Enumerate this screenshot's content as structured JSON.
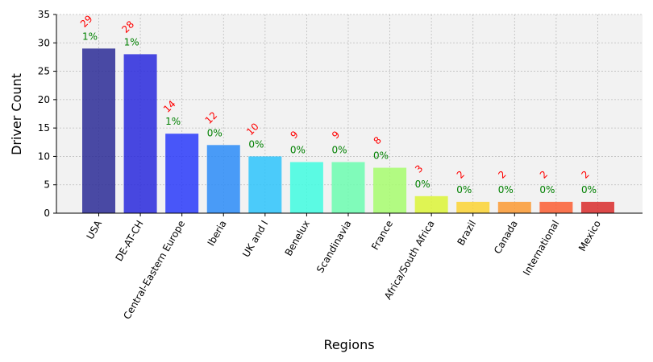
{
  "chart_data": {
    "type": "bar",
    "categories": [
      "USA",
      "DE-AT-CH",
      "Central-Eastern Europe",
      "Iberia",
      "UK and I",
      "Benelux",
      "Scandinavia",
      "France",
      "Africa/South Africa",
      "Brazil",
      "Canada",
      "International",
      "Mexico"
    ],
    "values": [
      29,
      28,
      14,
      12,
      10,
      9,
      9,
      8,
      3,
      2,
      2,
      2,
      2
    ],
    "value_labels": [
      "29",
      "28",
      "14",
      "12",
      "10",
      "9",
      "9",
      "8",
      "3",
      "2",
      "2",
      "2",
      "2"
    ],
    "percent_labels": [
      "1%",
      "1%",
      "1%",
      "0%",
      "0%",
      "0%",
      "0%",
      "0%",
      "0%",
      "0%",
      "0%",
      "0%",
      "0%"
    ],
    "bar_colors": [
      "#2b2b97",
      "#2929dd",
      "#2a3bfa",
      "#2b8cf8",
      "#2ec4fb",
      "#41fbe1",
      "#6cfdb0",
      "#a7fd6e",
      "#dcf537",
      "#fbd333",
      "#fb9a33",
      "#fb5e33",
      "#d92b2b"
    ],
    "xlabel": "Regions",
    "ylabel": "Driver Count",
    "ylim": [
      0,
      35
    ],
    "yticks": [
      0,
      5,
      10,
      15,
      20,
      25,
      30,
      35
    ],
    "grid": true,
    "plot_background": "#f2f2f2",
    "value_label_color": "#ff0000",
    "percent_label_color": "#008000"
  }
}
